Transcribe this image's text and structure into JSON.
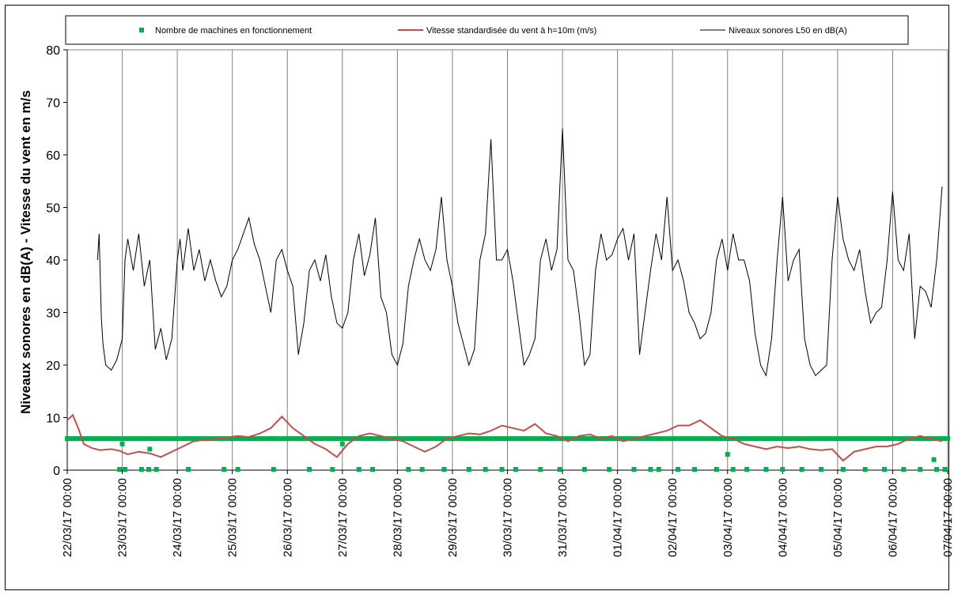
{
  "chart_data": {
    "type": "line",
    "title": "",
    "xlabel": "",
    "ylabel": "Niveaux sonores en dB(A) - Vitesse du vent en m/s",
    "ylim": [
      0,
      80
    ],
    "yticks": [
      0,
      10,
      20,
      30,
      40,
      50,
      60,
      70,
      80
    ],
    "xlim": [
      "22/03/17 00:00",
      "07/04/17 00:00"
    ],
    "xticks": [
      "22/03/17 00:00",
      "23/03/17 00:00",
      "24/03/17 00:00",
      "25/03/17 00:00",
      "26/03/17 00:00",
      "27/03/17 00:00",
      "28/03/17 00:00",
      "29/03/17 00:00",
      "30/03/17 00:00",
      "31/03/17 00:00",
      "01/04/17 00:00",
      "02/04/17 00:00",
      "03/04/17 00:00",
      "04/04/17 00:00",
      "05/04/17 00:00",
      "06/04/17 00:00",
      "07/04/17 00:00"
    ],
    "grid": "vertical",
    "legend_position": "top",
    "series": [
      {
        "name": "Nombre de machines en fonctionnement",
        "kind": "markers",
        "color": "#00B050",
        "x_days": [
          0.0,
          0.25,
          0.5,
          0.75,
          1.0,
          1.25,
          1.5,
          1.75,
          2.0,
          2.25,
          2.5,
          2.75,
          3.0,
          3.25,
          3.5,
          3.75,
          4.0,
          4.25,
          4.5,
          4.75,
          5.0,
          5.25,
          5.5,
          5.75,
          6.0,
          6.25,
          6.5,
          6.75,
          7.0,
          7.25,
          7.5,
          7.75,
          8.0,
          8.25,
          8.5,
          8.75,
          9.0,
          9.25,
          9.5,
          9.75,
          10.0,
          10.25,
          10.5,
          10.75,
          11.0,
          11.25,
          11.5,
          11.75,
          12.0,
          12.25,
          12.5,
          12.75,
          13.0,
          13.25,
          13.5,
          13.75,
          14.0,
          14.25,
          14.5,
          14.75,
          15.0,
          15.25,
          15.5,
          15.75,
          16.0
        ],
        "values": [
          6,
          6,
          6,
          6,
          5,
          6,
          4,
          6,
          6,
          6,
          6,
          6,
          6,
          6,
          6,
          6,
          6,
          6,
          6,
          6,
          5,
          6,
          6,
          6,
          6,
          6,
          6,
          6,
          6,
          6,
          6,
          6,
          6,
          6,
          6,
          6,
          6,
          6,
          6,
          6,
          6,
          6,
          6,
          6,
          6,
          6,
          6,
          6,
          3,
          6,
          6,
          6,
          6,
          6,
          6,
          6,
          6,
          6,
          6,
          6,
          6,
          6,
          6,
          2,
          6
        ],
        "zero_markers_x_days": [
          0.95,
          1.05,
          1.35,
          1.48,
          1.62,
          2.2,
          2.85,
          3.1,
          3.75,
          4.4,
          4.82,
          5.3,
          5.55,
          6.2,
          6.45,
          6.85,
          7.3,
          7.6,
          7.9,
          8.15,
          8.6,
          8.95,
          9.4,
          9.85,
          10.3,
          10.6,
          10.75,
          11.1,
          11.4,
          11.8,
          12.1,
          12.35,
          12.7,
          13.0,
          13.35,
          13.7,
          14.1,
          14.5,
          14.85,
          15.2,
          15.5,
          15.8,
          15.95
        ]
      },
      {
        "name": "Vitesse standardisée du vent à h=10m (m/s)",
        "kind": "line",
        "color": "#C0504D",
        "x_days": [
          0.0,
          0.1,
          0.2,
          0.3,
          0.45,
          0.6,
          0.8,
          0.95,
          1.1,
          1.3,
          1.5,
          1.7,
          1.9,
          2.1,
          2.3,
          2.5,
          2.7,
          2.9,
          3.1,
          3.3,
          3.5,
          3.7,
          3.9,
          4.1,
          4.3,
          4.5,
          4.7,
          4.9,
          5.1,
          5.3,
          5.5,
          5.7,
          5.9,
          6.1,
          6.3,
          6.5,
          6.7,
          6.9,
          7.1,
          7.3,
          7.5,
          7.7,
          7.9,
          8.1,
          8.3,
          8.5,
          8.7,
          8.9,
          9.1,
          9.3,
          9.5,
          9.7,
          9.9,
          10.1,
          10.3,
          10.5,
          10.7,
          10.9,
          11.1,
          11.3,
          11.5,
          11.7,
          11.9,
          12.1,
          12.3,
          12.5,
          12.7,
          12.9,
          13.1,
          13.3,
          13.5,
          13.7,
          13.9,
          14.1,
          14.3,
          14.5,
          14.7,
          14.9,
          15.1,
          15.3,
          15.5,
          15.7,
          15.9
        ],
        "values": [
          9.5,
          10.5,
          8.0,
          5.0,
          4.2,
          3.8,
          4.0,
          3.7,
          3.0,
          3.5,
          3.2,
          2.5,
          3.5,
          4.5,
          5.5,
          5.8,
          6.0,
          6.2,
          6.5,
          6.3,
          7.0,
          8.0,
          10.2,
          8.0,
          6.5,
          5.0,
          4.0,
          2.5,
          5.0,
          6.5,
          7.0,
          6.5,
          6.0,
          5.5,
          4.5,
          3.5,
          4.5,
          6.0,
          6.5,
          7.0,
          6.8,
          7.5,
          8.5,
          8.0,
          7.5,
          8.8,
          7.0,
          6.5,
          5.5,
          6.5,
          6.8,
          6.0,
          6.5,
          5.5,
          6.0,
          6.5,
          7.0,
          7.5,
          8.5,
          8.5,
          9.5,
          8.0,
          6.5,
          6.0,
          5.0,
          4.5,
          4.0,
          4.5,
          4.2,
          4.5,
          4.0,
          3.8,
          4.0,
          1.8,
          3.5,
          4.0,
          4.5,
          4.5,
          5.0,
          6.0,
          6.5,
          6.0,
          5.5
        ]
      },
      {
        "name": "Niveaux sonores L50 en dB(A)",
        "kind": "line",
        "color": "#000000",
        "x_days": [
          0.55,
          0.58,
          0.62,
          0.65,
          0.7,
          0.8,
          0.9,
          1.0,
          1.05,
          1.1,
          1.2,
          1.3,
          1.4,
          1.5,
          1.6,
          1.7,
          1.8,
          1.9,
          2.0,
          2.05,
          2.1,
          2.2,
          2.3,
          2.4,
          2.5,
          2.6,
          2.7,
          2.8,
          2.9,
          3.0,
          3.1,
          3.2,
          3.3,
          3.4,
          3.5,
          3.6,
          3.7,
          3.8,
          3.9,
          4.0,
          4.1,
          4.2,
          4.3,
          4.4,
          4.5,
          4.6,
          4.7,
          4.8,
          4.9,
          5.0,
          5.1,
          5.2,
          5.3,
          5.4,
          5.5,
          5.6,
          5.7,
          5.8,
          5.9,
          6.0,
          6.1,
          6.2,
          6.3,
          6.4,
          6.5,
          6.6,
          6.7,
          6.8,
          6.9,
          7.0,
          7.1,
          7.2,
          7.3,
          7.4,
          7.5,
          7.6,
          7.7,
          7.8,
          7.9,
          8.0,
          8.1,
          8.2,
          8.3,
          8.4,
          8.5,
          8.6,
          8.7,
          8.8,
          8.9,
          9.0,
          9.1,
          9.2,
          9.3,
          9.4,
          9.5,
          9.6,
          9.7,
          9.8,
          9.9,
          10.0,
          10.1,
          10.2,
          10.3,
          10.4,
          10.5,
          10.6,
          10.7,
          10.8,
          10.9,
          11.0,
          11.1,
          11.2,
          11.3,
          11.4,
          11.5,
          11.6,
          11.7,
          11.8,
          11.9,
          12.0,
          12.1,
          12.2,
          12.3,
          12.4,
          12.5,
          12.6,
          12.7,
          12.8,
          12.9,
          13.0,
          13.1,
          13.2,
          13.3,
          13.4,
          13.5,
          13.6,
          13.7,
          13.8,
          13.9,
          14.0,
          14.1,
          14.2,
          14.3,
          14.4,
          14.5,
          14.6,
          14.7,
          14.8,
          14.9,
          15.0,
          15.1,
          15.2,
          15.3,
          15.4,
          15.5,
          15.6,
          15.7,
          15.8,
          15.9
        ],
        "values": [
          40,
          45,
          29,
          24,
          20,
          19,
          21,
          25,
          40,
          44,
          38,
          45,
          35,
          40,
          23,
          27,
          21,
          25,
          40,
          44,
          38,
          46,
          38,
          42,
          36,
          40,
          36,
          33,
          35,
          40,
          42,
          45,
          48,
          43,
          40,
          35,
          30,
          40,
          42,
          38,
          35,
          22,
          28,
          38,
          40,
          36,
          41,
          33,
          28,
          27,
          30,
          40,
          45,
          37,
          41,
          48,
          33,
          30,
          22,
          20,
          24,
          35,
          40,
          44,
          40,
          38,
          42,
          52,
          40,
          35,
          28,
          24,
          20,
          23,
          40,
          45,
          63,
          40,
          40,
          42,
          36,
          28,
          20,
          22,
          25,
          40,
          44,
          38,
          42,
          65,
          40,
          38,
          30,
          20,
          22,
          38,
          45,
          40,
          41,
          44,
          46,
          40,
          45,
          22,
          30,
          38,
          45,
          40,
          52,
          38,
          40,
          36,
          30,
          28,
          25,
          26,
          30,
          40,
          44,
          38,
          45,
          40,
          40,
          36,
          26,
          20,
          18,
          25,
          40,
          52,
          36,
          40,
          42,
          25,
          20,
          18,
          19,
          20,
          40,
          52,
          44,
          40,
          38,
          42,
          34,
          28,
          30,
          31,
          40,
          53,
          40,
          38,
          45,
          25,
          35,
          34,
          31,
          40,
          54
        ]
      }
    ]
  }
}
